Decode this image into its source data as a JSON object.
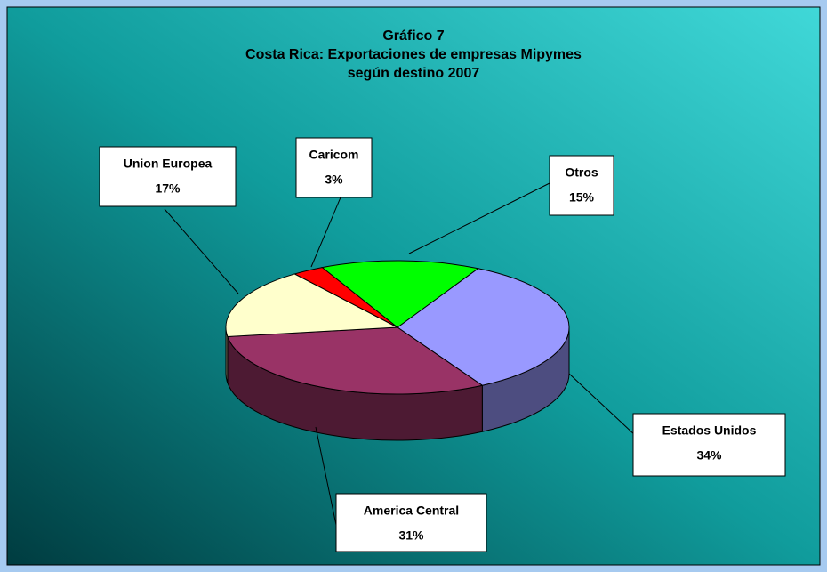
{
  "chart_data": {
    "type": "pie",
    "title": "Gráfico 7",
    "subtitle": [
      "Costa Rica: Exportaciones de empresas Mipymes",
      "según destino 2007"
    ],
    "categories": [
      "Estados Unidos",
      "America Central",
      "Union Europea",
      "Caricom",
      "Otros"
    ],
    "values": [
      34,
      31,
      17,
      3,
      15
    ],
    "value_labels": [
      "34%",
      "31%",
      "17%",
      "3%",
      "15%"
    ],
    "colors": [
      "#9999ff",
      "#993366",
      "#ffffcc",
      "#ff0000",
      "#00ff00"
    ]
  }
}
